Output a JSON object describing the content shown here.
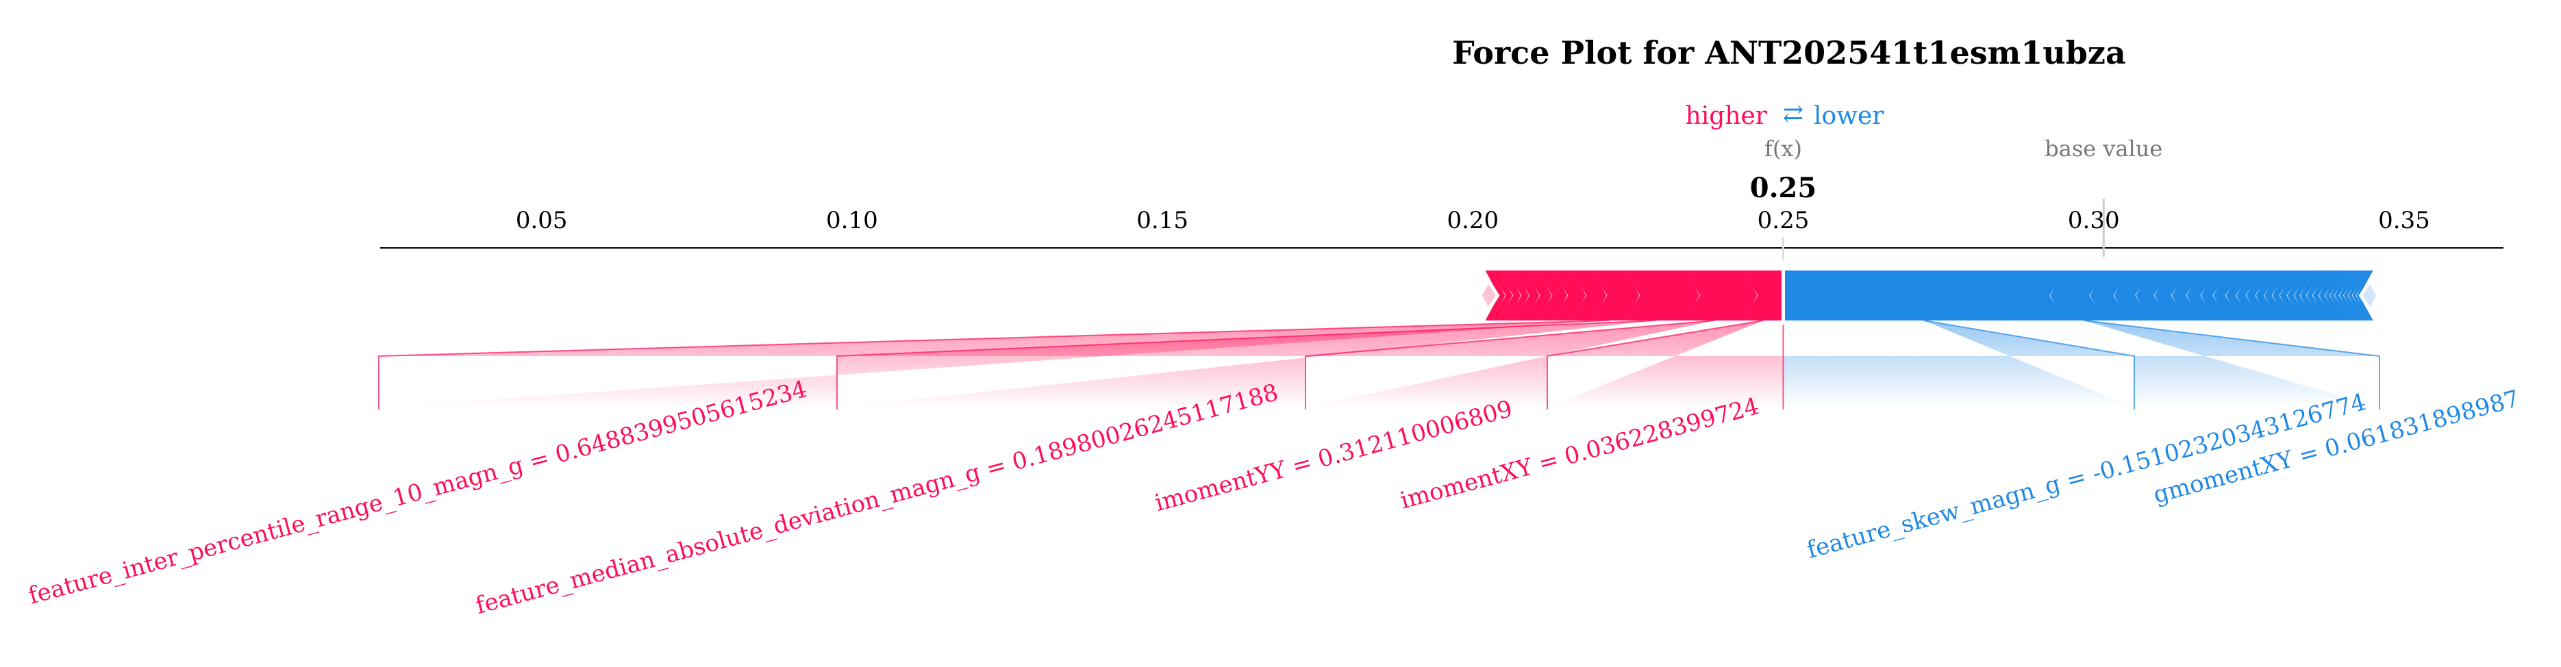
{
  "chart_data": {
    "type": "force",
    "title": "Force Plot for ANT202541t1esm1ubza",
    "legend": {
      "higher": "higher",
      "arrow": "⇄",
      "lower": "lower"
    },
    "output_label": "f(x)",
    "output_value": 0.25,
    "output_value_text": "0.25",
    "base_value_label": "base value",
    "base_value": 0.3016,
    "xlim": [
      0.024,
      0.366
    ],
    "ticks": [
      0.05,
      0.1,
      0.15,
      0.2,
      0.25,
      0.3,
      0.35
    ],
    "tick_labels": [
      "0.05",
      "0.10",
      "0.15",
      "0.20",
      "0.25",
      "0.30",
      "0.35"
    ],
    "colors": {
      "positive": "#ff0d57",
      "negative": "#1e88e5",
      "positive_light": "#ffc3d5",
      "negative_light": "#d1e6fa"
    },
    "positive_features": [
      {
        "label": "imomentXY = 0.036228399724",
        "start": 0.2436,
        "end": 0.25
      },
      {
        "label": "imomentYY = 0.312110006809",
        "start": 0.2343,
        "end": 0.2436
      },
      {
        "label": "feature_median_absolute_deviation_magn_g = 0.18980026245117188",
        "start": 0.2246,
        "end": 0.2343
      },
      {
        "label": "feature_inter_percentile_range_10_magn_g = 0.6488399505615234",
        "start": 0.2193,
        "end": 0.2246
      }
    ],
    "positive_small": [
      0.2193,
      0.216,
      0.213,
      0.2105,
      0.2085,
      0.2068,
      0.2055,
      0.2042,
      0.203,
      0.202
    ],
    "positive_min": 0.2015,
    "negative_features": [
      {
        "label": "feature_skew_magn_g = -0.15102320343126774",
        "start": 0.25,
        "end": 0.2952
      },
      {
        "label": "gmomentXY = 0.061831898987",
        "start": 0.2952,
        "end": 0.3016
      }
    ],
    "negative_small": [
      0.3016,
      0.3055,
      0.309,
      0.312,
      0.3148,
      0.3172,
      0.3195,
      0.3215,
      0.3235,
      0.3252,
      0.3268,
      0.3283,
      0.3297,
      0.331,
      0.3322,
      0.3334,
      0.3345,
      0.3355,
      0.3365,
      0.3375,
      0.3385,
      0.3395,
      0.3403,
      0.341,
      0.3418,
      0.3425,
      0.3432,
      0.3439,
      0.3445,
      0.345
    ],
    "negative_max": 0.3455
  }
}
